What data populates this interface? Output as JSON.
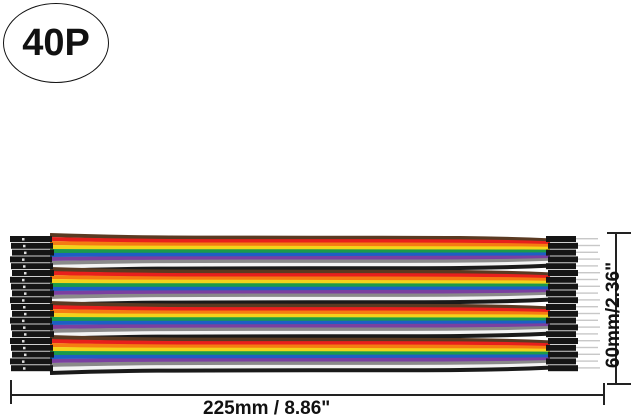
{
  "badge": {
    "label": "40P"
  },
  "product": {
    "description": "40-pin rainbow ribbon dupont jumper wires, female to male",
    "wire_colors": [
      "#5a3a22",
      "#e8201c",
      "#f57c12",
      "#f4d31a",
      "#1b9a4a",
      "#1d5fc4",
      "#7b3fa0",
      "#8a8a8a",
      "#f2f2f2",
      "#1a1a1a"
    ],
    "connector_color": "#151515"
  },
  "dimensions": {
    "length_label": "225mm / 8.86\"",
    "width_label": "60mm/2.36\""
  }
}
